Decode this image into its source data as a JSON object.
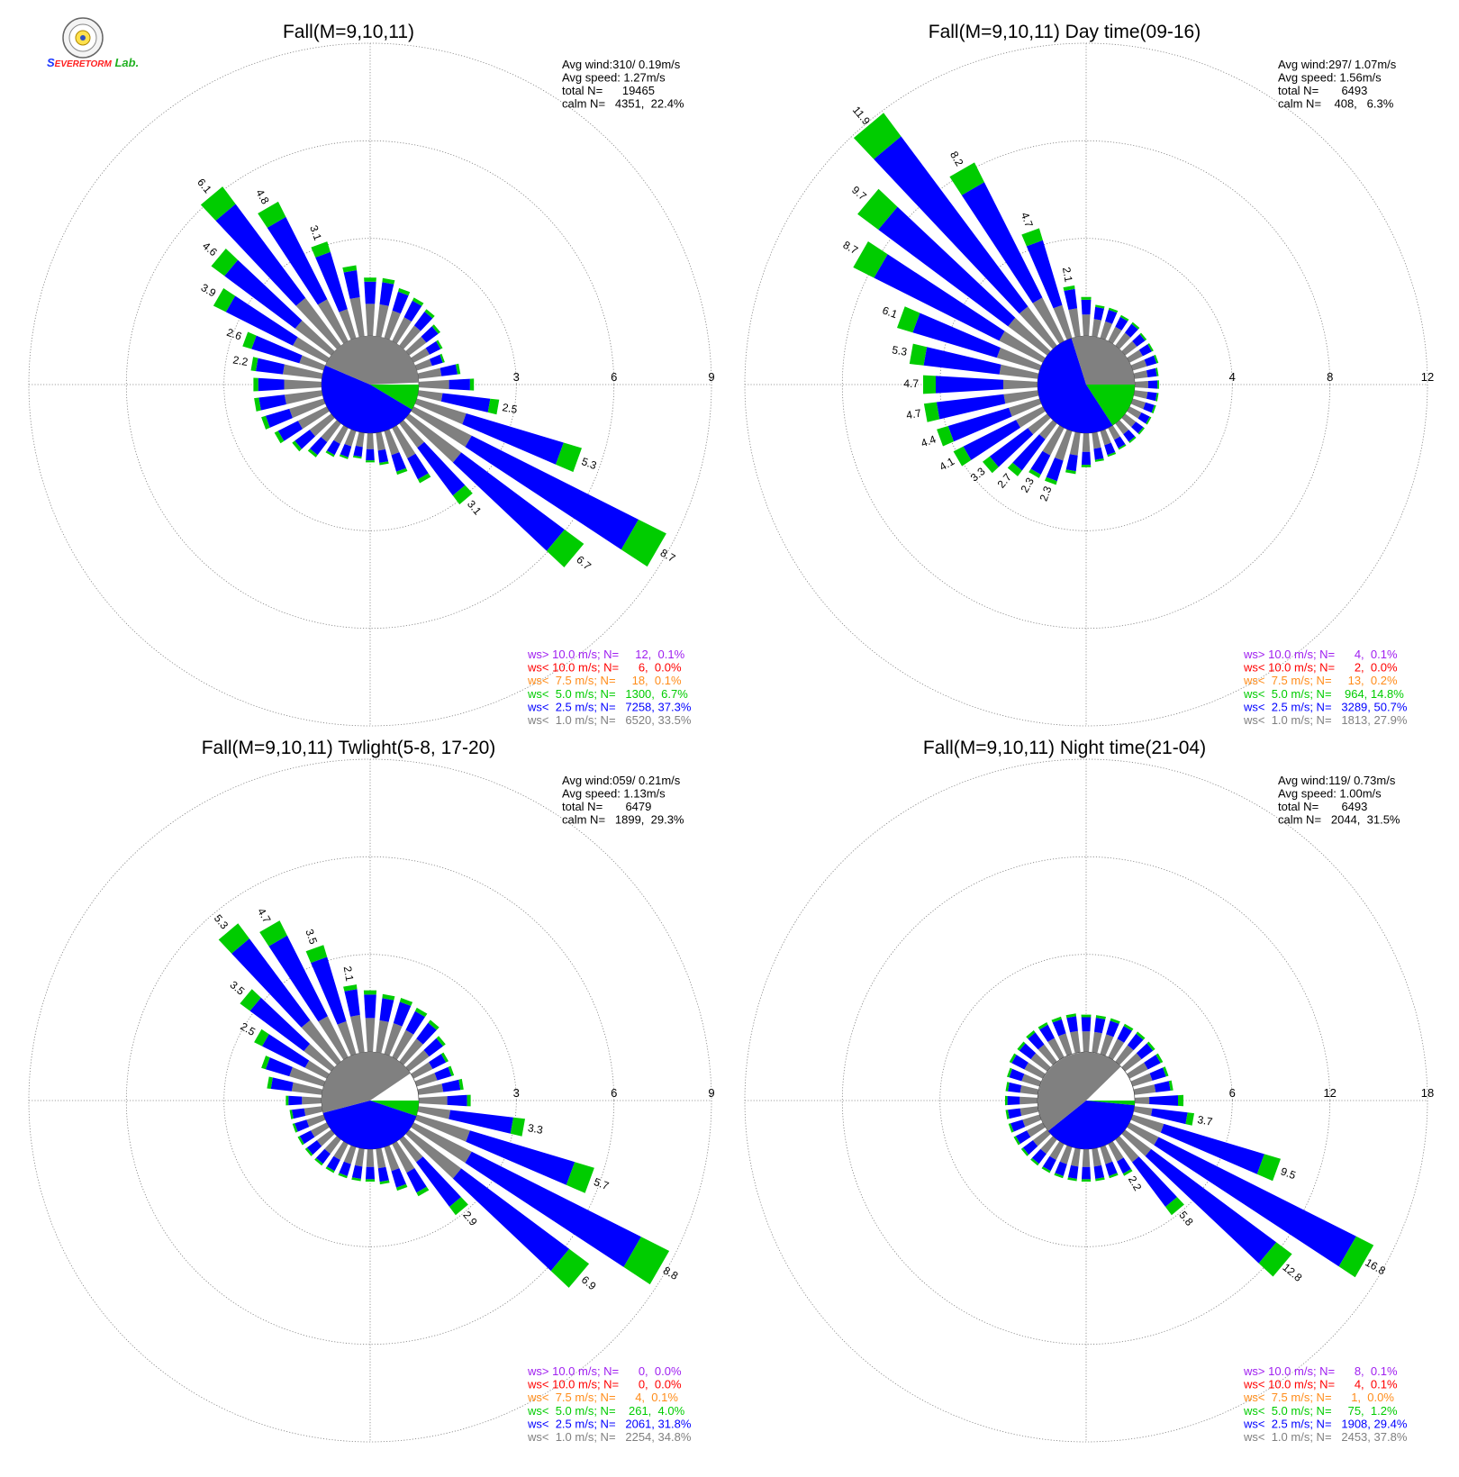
{
  "logo": {
    "part1": "S",
    "part2": "EVERE",
    "part3": "TORM",
    "part4": "Lab."
  },
  "panels": [
    {
      "title": "Fall(M=9,10,11)",
      "info": {
        "avg_wind": "Avg wind:310/ 0.19m/s",
        "avg_speed": "Avg speed: 1.27m/s",
        "total": "total N=      19465",
        "calm": "calm N=   4351,  22.4%"
      },
      "legend": [
        "ws> 10.0 m/s; N=     12,  0.1%",
        "ws< 10.0 m/s; N=      6,  0.0%",
        "ws<  7.5 m/s; N=     18,  0.1%",
        "ws<  5.0 m/s; N=   1300,  6.7%",
        "ws<  2.5 m/s; N=   7258, 37.3%",
        "ws<  1.0 m/s; N=   6520, 33.5%"
      ],
      "chart_data": {
        "type": "windrose",
        "ring_labels": [
          "3",
          "6",
          "9"
        ],
        "r_max": 9,
        "calm_pie": {
          "c1": 0.335,
          "c2": 0.373,
          "c3": 0.067
        },
        "petals": [
          {
            "dir": 10,
            "total": 1.8,
            "label": ""
          },
          {
            "dir": 20,
            "total": 1.6,
            "label": ""
          },
          {
            "dir": 30,
            "total": 1.5,
            "label": ""
          },
          {
            "dir": 40,
            "total": 1.4,
            "label": ""
          },
          {
            "dir": 50,
            "total": 1.2,
            "label": ""
          },
          {
            "dir": 60,
            "total": 1.0,
            "label": ""
          },
          {
            "dir": 70,
            "total": 0.9,
            "label": ""
          },
          {
            "dir": 80,
            "total": 1.3,
            "label": ""
          },
          {
            "dir": 90,
            "total": 1.7,
            "label": ""
          },
          {
            "dir": 100,
            "total": 2.5,
            "label": "2.5"
          },
          {
            "dir": 110,
            "total": 5.3,
            "label": "5.3"
          },
          {
            "dir": 120,
            "total": 8.7,
            "label": "8.7"
          },
          {
            "dir": 130,
            "total": 6.7,
            "label": "6.7"
          },
          {
            "dir": 140,
            "total": 3.1,
            "label": "3.1"
          },
          {
            "dir": 150,
            "total": 1.9,
            "label": ""
          },
          {
            "dir": 160,
            "total": 1.4,
            "label": ""
          },
          {
            "dir": 170,
            "total": 1.0,
            "label": ""
          },
          {
            "dir": 180,
            "total": 0.9,
            "label": ""
          },
          {
            "dir": 190,
            "total": 0.8,
            "label": ""
          },
          {
            "dir": 200,
            "total": 0.9,
            "label": ""
          },
          {
            "dir": 210,
            "total": 1.0,
            "label": ""
          },
          {
            "dir": 220,
            "total": 1.3,
            "label": ""
          },
          {
            "dir": 230,
            "total": 1.5,
            "label": ""
          },
          {
            "dir": 240,
            "total": 1.8,
            "label": ""
          },
          {
            "dir": 250,
            "total": 2.0,
            "label": ""
          },
          {
            "dir": 260,
            "total": 2.1,
            "label": ""
          },
          {
            "dir": 270,
            "total": 2.1,
            "label": ""
          },
          {
            "dir": 280,
            "total": 2.2,
            "label": "2.2"
          },
          {
            "dir": 290,
            "total": 2.6,
            "label": "2.6"
          },
          {
            "dir": 300,
            "total": 3.9,
            "label": "3.9"
          },
          {
            "dir": 310,
            "total": 4.6,
            "label": "4.6"
          },
          {
            "dir": 320,
            "total": 6.1,
            "label": "6.1"
          },
          {
            "dir": 330,
            "total": 4.8,
            "label": "4.8"
          },
          {
            "dir": 340,
            "total": 3.1,
            "label": "3.1"
          },
          {
            "dir": 350,
            "total": 2.2,
            "label": ""
          },
          {
            "dir": 360,
            "total": 1.8,
            "label": ""
          }
        ]
      }
    },
    {
      "title": "Fall(M=9,10,11) Day time(09-16)",
      "info": {
        "avg_wind": "Avg wind:297/ 1.07m/s",
        "avg_speed": "Avg speed: 1.56m/s",
        "total": "total N=       6493",
        "calm": "calm N=    408,   6.3%"
      },
      "legend": [
        "ws> 10.0 m/s; N=      4,  0.1%",
        "ws< 10.0 m/s; N=      2,  0.0%",
        "ws<  7.5 m/s; N=     13,  0.2%",
        "ws<  5.0 m/s; N=    964, 14.8%",
        "ws<  2.5 m/s; N=   3289, 50.7%",
        "ws<  1.0 m/s; N=   1813, 27.9%"
      ],
      "chart_data": {
        "type": "windrose",
        "ring_labels": [
          "4",
          "8",
          "12"
        ],
        "r_max": 12,
        "calm_pie": {
          "c1": 0.279,
          "c2": 0.507,
          "c3": 0.148
        },
        "petals": [
          {
            "dir": 10,
            "total": 1.3,
            "label": ""
          },
          {
            "dir": 20,
            "total": 1.3,
            "label": ""
          },
          {
            "dir": 30,
            "total": 1.2,
            "label": ""
          },
          {
            "dir": 40,
            "total": 1.2,
            "label": ""
          },
          {
            "dir": 50,
            "total": 1.1,
            "label": ""
          },
          {
            "dir": 60,
            "total": 1.1,
            "label": ""
          },
          {
            "dir": 70,
            "total": 1.1,
            "label": ""
          },
          {
            "dir": 80,
            "total": 1.0,
            "label": ""
          },
          {
            "dir": 90,
            "total": 1.0,
            "label": ""
          },
          {
            "dir": 100,
            "total": 1.0,
            "label": ""
          },
          {
            "dir": 110,
            "total": 1.0,
            "label": ""
          },
          {
            "dir": 120,
            "total": 1.0,
            "label": ""
          },
          {
            "dir": 130,
            "total": 1.0,
            "label": ""
          },
          {
            "dir": 140,
            "total": 1.0,
            "label": ""
          },
          {
            "dir": 150,
            "total": 1.0,
            "label": ""
          },
          {
            "dir": 160,
            "total": 1.1,
            "label": ""
          },
          {
            "dir": 170,
            "total": 1.2,
            "label": ""
          },
          {
            "dir": 180,
            "total": 1.4,
            "label": ""
          },
          {
            "dir": 190,
            "total": 1.7,
            "label": ""
          },
          {
            "dir": 200,
            "total": 2.3,
            "label": "2.3"
          },
          {
            "dir": 210,
            "total": 2.3,
            "label": "2.3"
          },
          {
            "dir": 220,
            "total": 2.7,
            "label": "2.7"
          },
          {
            "dir": 230,
            "total": 3.3,
            "label": "3.3"
          },
          {
            "dir": 240,
            "total": 4.1,
            "label": "4.1"
          },
          {
            "dir": 250,
            "total": 4.4,
            "label": "4.4"
          },
          {
            "dir": 260,
            "total": 4.7,
            "label": "4.7"
          },
          {
            "dir": 270,
            "total": 4.7,
            "label": "4.7"
          },
          {
            "dir": 280,
            "total": 5.3,
            "label": "5.3"
          },
          {
            "dir": 290,
            "total": 6.1,
            "label": "6.1"
          },
          {
            "dir": 300,
            "total": 8.7,
            "label": "8.7"
          },
          {
            "dir": 310,
            "total": 9.7,
            "label": "9.7"
          },
          {
            "dir": 320,
            "total": 11.9,
            "label": "11.9"
          },
          {
            "dir": 330,
            "total": 8.2,
            "label": "8.2"
          },
          {
            "dir": 340,
            "total": 4.7,
            "label": "4.7"
          },
          {
            "dir": 350,
            "total": 2.1,
            "label": "2.1"
          },
          {
            "dir": 360,
            "total": 1.6,
            "label": ""
          }
        ]
      }
    },
    {
      "title": "Fall(M=9,10,11) Twlight(5-8, 17-20)",
      "info": {
        "avg_wind": "Avg wind:059/ 0.21m/s",
        "avg_speed": "Avg speed: 1.13m/s",
        "total": "total N=       6479",
        "calm": "calm N=   1899,  29.3%"
      },
      "legend": [
        "ws> 10.0 m/s; N=      0,  0.0%",
        "ws< 10.0 m/s; N=      0,  0.0%",
        "ws<  7.5 m/s; N=      4,  0.1%",
        "ws<  5.0 m/s; N=    261,  4.0%",
        "ws<  2.5 m/s; N=   2061, 31.8%",
        "ws<  1.0 m/s; N=   2254, 34.8%"
      ],
      "chart_data": {
        "type": "windrose",
        "ring_labels": [
          "3",
          "6",
          "9"
        ],
        "r_max": 9,
        "calm_pie": {
          "c1": 0.348,
          "c2": 0.318,
          "c3": 0.04
        },
        "petals": [
          {
            "dir": 10,
            "total": 1.8,
            "label": ""
          },
          {
            "dir": 20,
            "total": 1.8,
            "label": ""
          },
          {
            "dir": 30,
            "total": 1.7,
            "label": ""
          },
          {
            "dir": 40,
            "total": 1.6,
            "label": ""
          },
          {
            "dir": 50,
            "total": 1.4,
            "label": ""
          },
          {
            "dir": 60,
            "total": 1.2,
            "label": ""
          },
          {
            "dir": 70,
            "total": 1.2,
            "label": ""
          },
          {
            "dir": 80,
            "total": 1.4,
            "label": ""
          },
          {
            "dir": 90,
            "total": 1.6,
            "label": ""
          },
          {
            "dir": 100,
            "total": 3.3,
            "label": "3.3"
          },
          {
            "dir": 110,
            "total": 5.7,
            "label": "5.7"
          },
          {
            "dir": 120,
            "total": 8.8,
            "label": "8.8"
          },
          {
            "dir": 130,
            "total": 6.9,
            "label": "6.9"
          },
          {
            "dir": 140,
            "total": 2.9,
            "label": "2.9"
          },
          {
            "dir": 150,
            "total": 1.8,
            "label": ""
          },
          {
            "dir": 160,
            "total": 1.4,
            "label": ""
          },
          {
            "dir": 170,
            "total": 1.1,
            "label": ""
          },
          {
            "dir": 180,
            "total": 1.0,
            "label": ""
          },
          {
            "dir": 190,
            "total": 1.0,
            "label": ""
          },
          {
            "dir": 200,
            "total": 1.0,
            "label": ""
          },
          {
            "dir": 210,
            "total": 1.0,
            "label": ""
          },
          {
            "dir": 220,
            "total": 1.0,
            "label": ""
          },
          {
            "dir": 230,
            "total": 1.0,
            "label": ""
          },
          {
            "dir": 240,
            "total": 1.0,
            "label": ""
          },
          {
            "dir": 250,
            "total": 1.0,
            "label": ""
          },
          {
            "dir": 260,
            "total": 1.0,
            "label": ""
          },
          {
            "dir": 270,
            "total": 1.1,
            "label": ""
          },
          {
            "dir": 280,
            "total": 1.7,
            "label": ""
          },
          {
            "dir": 290,
            "total": 2.0,
            "label": ""
          },
          {
            "dir": 300,
            "total": 2.5,
            "label": "2.5"
          },
          {
            "dir": 310,
            "total": 3.5,
            "label": "3.5"
          },
          {
            "dir": 320,
            "total": 5.3,
            "label": "5.3"
          },
          {
            "dir": 330,
            "total": 4.7,
            "label": "4.7"
          },
          {
            "dir": 340,
            "total": 3.5,
            "label": "3.5"
          },
          {
            "dir": 350,
            "total": 2.1,
            "label": "2.1"
          },
          {
            "dir": 360,
            "total": 1.9,
            "label": ""
          }
        ]
      }
    },
    {
      "title": "Fall(M=9,10,11) Night time(21-04)",
      "info": {
        "avg_wind": "Avg wind:119/ 0.73m/s",
        "avg_speed": "Avg speed: 1.00m/s",
        "total": "total N=       6493",
        "calm": "calm N=   2044,  31.5%"
      },
      "legend": [
        "ws> 10.0 m/s; N=      8,  0.1%",
        "ws< 10.0 m/s; N=      4,  0.1%",
        "ws<  7.5 m/s; N=      1,  0.0%",
        "ws<  5.0 m/s; N=     75,  1.2%",
        "ws<  2.5 m/s; N=   1908, 29.4%",
        "ws<  1.0 m/s; N=   2453, 37.8%"
      ],
      "chart_data": {
        "type": "windrose",
        "ring_labels": [
          "6",
          "12",
          "18"
        ],
        "r_max": 18,
        "calm_pie": {
          "c1": 0.378,
          "c2": 0.294,
          "c3": 0.012
        },
        "petals": [
          {
            "dir": 10,
            "total": 2.3,
            "label": ""
          },
          {
            "dir": 20,
            "total": 2.3,
            "label": ""
          },
          {
            "dir": 30,
            "total": 2.3,
            "label": ""
          },
          {
            "dir": 40,
            "total": 2.3,
            "label": ""
          },
          {
            "dir": 50,
            "total": 2.3,
            "label": ""
          },
          {
            "dir": 60,
            "total": 2.3,
            "label": ""
          },
          {
            "dir": 70,
            "total": 2.3,
            "label": ""
          },
          {
            "dir": 80,
            "total": 2.4,
            "label": ""
          },
          {
            "dir": 90,
            "total": 3.0,
            "label": ""
          },
          {
            "dir": 100,
            "total": 3.7,
            "label": "3.7"
          },
          {
            "dir": 110,
            "total": 9.5,
            "label": "9.5"
          },
          {
            "dir": 120,
            "total": 16.8,
            "label": "16.8"
          },
          {
            "dir": 130,
            "total": 12.8,
            "label": "12.8"
          },
          {
            "dir": 140,
            "total": 5.8,
            "label": "5.8"
          },
          {
            "dir": 150,
            "total": 2.2,
            "label": "2.2"
          },
          {
            "dir": 160,
            "total": 2.0,
            "label": ""
          },
          {
            "dir": 170,
            "total": 2.0,
            "label": ""
          },
          {
            "dir": 180,
            "total": 2.0,
            "label": ""
          },
          {
            "dir": 190,
            "total": 2.0,
            "label": ""
          },
          {
            "dir": 200,
            "total": 2.0,
            "label": ""
          },
          {
            "dir": 210,
            "total": 2.0,
            "label": ""
          },
          {
            "dir": 220,
            "total": 2.0,
            "label": ""
          },
          {
            "dir": 230,
            "total": 2.0,
            "label": ""
          },
          {
            "dir": 240,
            "total": 2.0,
            "label": ""
          },
          {
            "dir": 250,
            "total": 2.0,
            "label": ""
          },
          {
            "dir": 260,
            "total": 2.0,
            "label": ""
          },
          {
            "dir": 270,
            "total": 2.0,
            "label": ""
          },
          {
            "dir": 280,
            "total": 2.0,
            "label": ""
          },
          {
            "dir": 290,
            "total": 2.1,
            "label": ""
          },
          {
            "dir": 300,
            "total": 2.3,
            "label": ""
          },
          {
            "dir": 310,
            "total": 2.3,
            "label": ""
          },
          {
            "dir": 320,
            "total": 2.4,
            "label": ""
          },
          {
            "dir": 330,
            "total": 2.4,
            "label": ""
          },
          {
            "dir": 340,
            "total": 2.4,
            "label": ""
          },
          {
            "dir": 350,
            "total": 2.4,
            "label": ""
          },
          {
            "dir": 360,
            "total": 2.3,
            "label": ""
          }
        ]
      }
    }
  ],
  "colors": {
    "c1": "#808080",
    "c2": "#0000ff",
    "c3": "#00cc00",
    "c4": "#ff8c1a",
    "c5": "#ff0000",
    "c6": "#a020f0",
    "grid": "#808080"
  }
}
